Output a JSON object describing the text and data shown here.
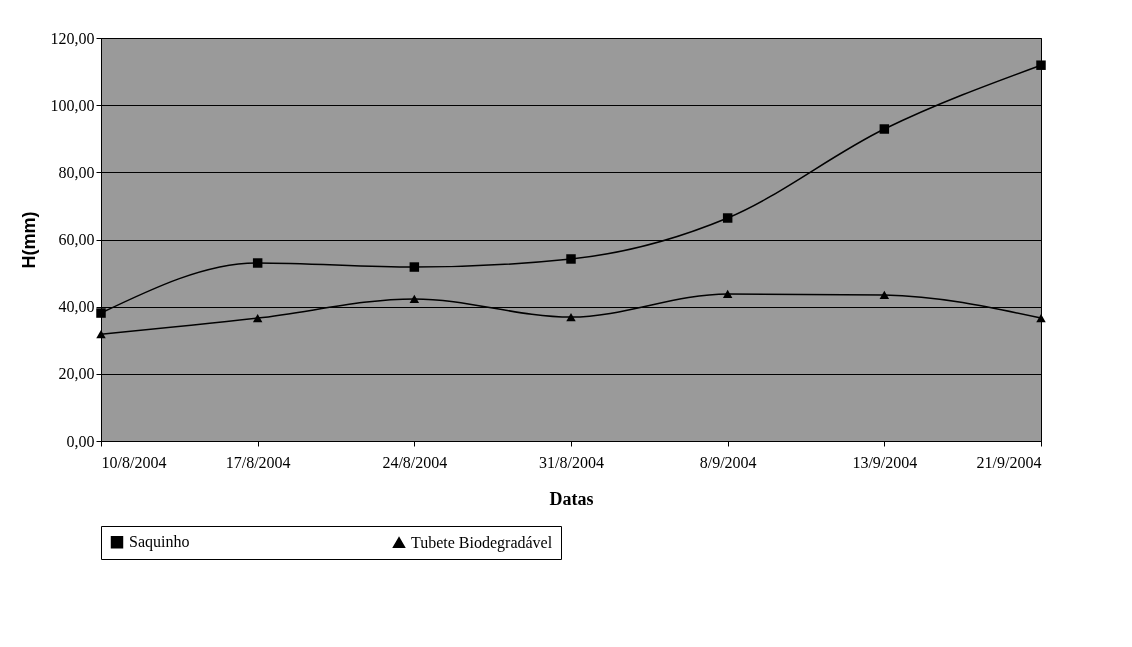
{
  "chart_data": {
    "type": "line",
    "xlabel": "Datas",
    "ylabel": "H(mm)",
    "categories": [
      "10/8/2004",
      "17/8/2004",
      "24/8/2004",
      "31/8/2004",
      "8/9/2004",
      "13/9/2004",
      "21/9/2004"
    ],
    "series": [
      {
        "name": "Saquinho",
        "color": "#000000",
        "marker": "square",
        "values": [
          38.1,
          53.0,
          51.8,
          54.2,
          66.4,
          92.9,
          111.9
        ]
      },
      {
        "name": "Tubete Biodegradável",
        "color": "#000000",
        "marker": "triangle",
        "values": [
          31.8,
          36.6,
          42.3,
          36.9,
          43.8,
          43.5,
          36.6
        ]
      }
    ],
    "ylim": [
      0,
      120
    ],
    "yticks": [
      {
        "value": 0,
        "label": "0,00"
      },
      {
        "value": 20,
        "label": "20,00"
      },
      {
        "value": 40,
        "label": "40,00"
      },
      {
        "value": 60,
        "label": "60,00"
      },
      {
        "value": 80,
        "label": "80,00"
      },
      {
        "value": 100,
        "label": "100,00"
      },
      {
        "value": 120,
        "label": "120,00"
      }
    ],
    "grid": "y",
    "legend": "bottom",
    "line_style": "solid"
  }
}
